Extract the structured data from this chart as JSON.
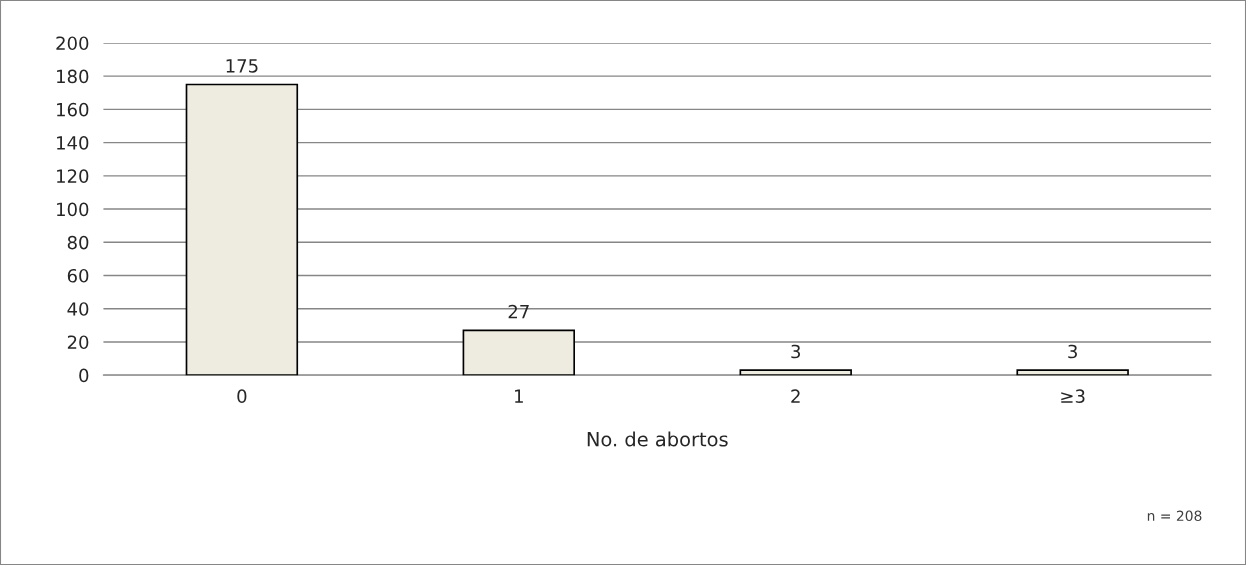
{
  "chart_data": {
    "type": "bar",
    "xlabel": "No. de abortos",
    "categories": [
      "0",
      "1",
      "2",
      "≥3"
    ],
    "values": [
      175,
      27,
      3,
      3
    ],
    "color": "#eeece1",
    "ylim": [
      0,
      200
    ],
    "yticks": [
      0,
      20,
      40,
      60,
      80,
      100,
      120,
      140,
      160,
      180,
      200
    ],
    "grid": "y",
    "data_labels": true,
    "legend": false,
    "annotations": [
      "n = 208"
    ]
  }
}
